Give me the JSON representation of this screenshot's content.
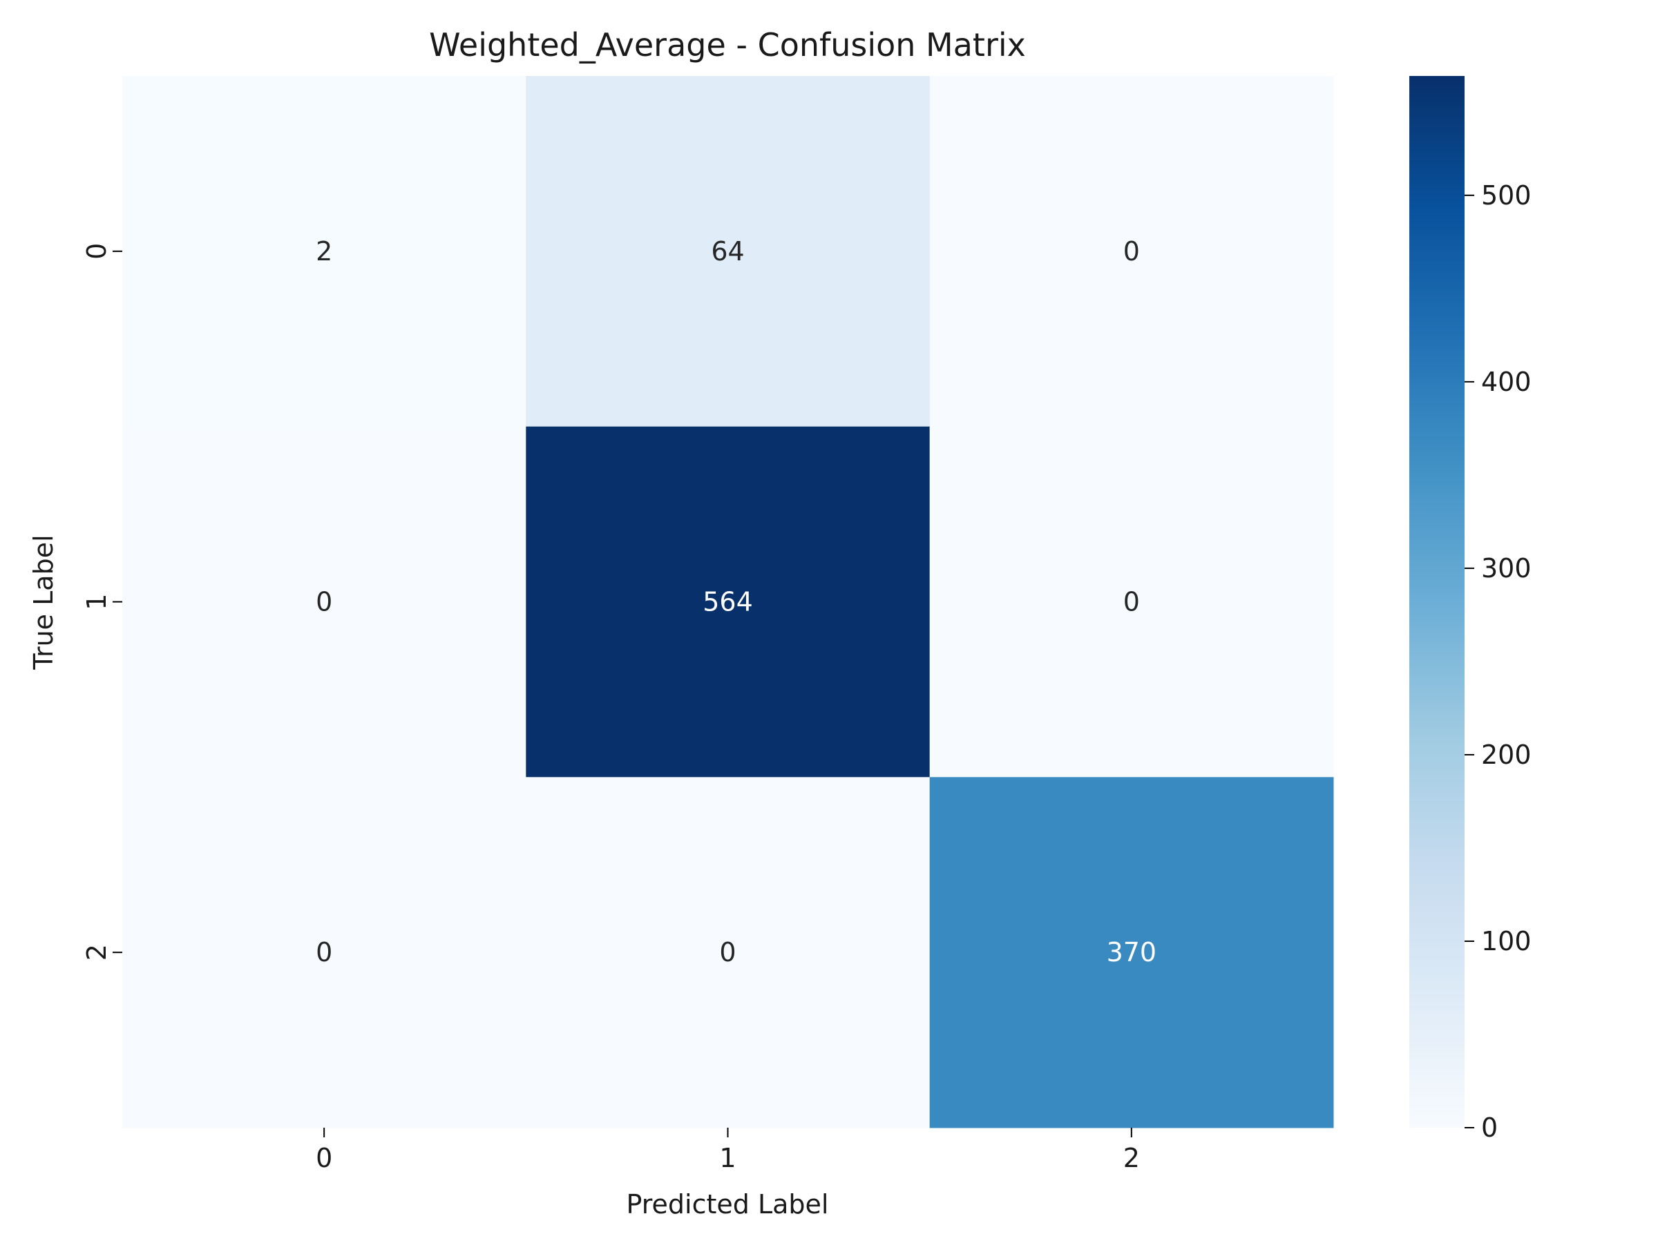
{
  "chart_data": {
    "type": "heatmap",
    "title": "Weighted_Average - Confusion Matrix",
    "xlabel": "Predicted Label",
    "ylabel": "True Label",
    "x_categories": [
      "0",
      "1",
      "2"
    ],
    "y_categories": [
      "0",
      "1",
      "2"
    ],
    "values": [
      [
        2,
        64,
        0
      ],
      [
        0,
        564,
        0
      ],
      [
        0,
        0,
        370
      ]
    ],
    "colormap": "Blues",
    "colorbar": {
      "min": 0,
      "max": 564,
      "ticks": [
        0,
        100,
        200,
        300,
        400,
        500
      ]
    },
    "grid": false,
    "legend": "none"
  }
}
